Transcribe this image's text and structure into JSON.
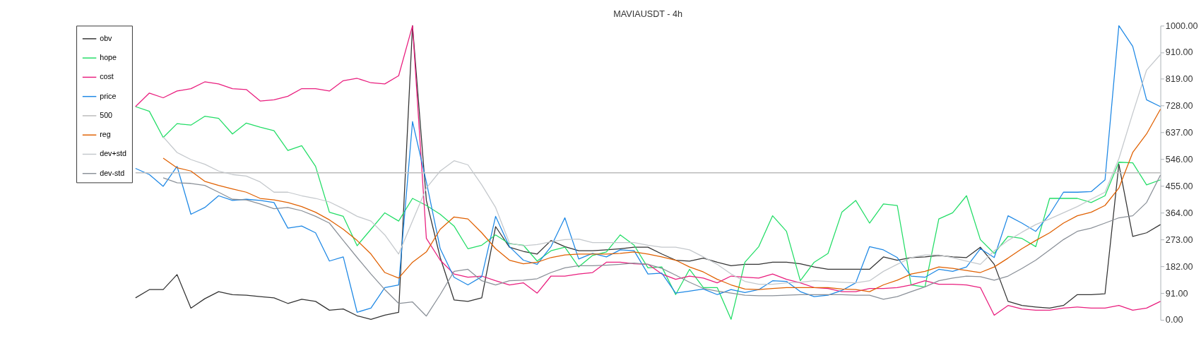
{
  "chart_data": {
    "type": "line",
    "title": "MAVIAUSDT - 4h",
    "categories": [
      null,
      null,
      null,
      null,
      null,
      null,
      null,
      null,
      null,
      null,
      null,
      null,
      null,
      null,
      null,
      null,
      null,
      null,
      null,
      null,
      null,
      null,
      null,
      null,
      null,
      null,
      null,
      null,
      null,
      null,
      null,
      null,
      null,
      null,
      null,
      null,
      null,
      null,
      null,
      null,
      null,
      null,
      null,
      null,
      null,
      null,
      null,
      null,
      null,
      null,
      null,
      null,
      null,
      null,
      null,
      null,
      null,
      null,
      null,
      null,
      null,
      null,
      null,
      null,
      null,
      null,
      null,
      null,
      null,
      null,
      null,
      null,
      null,
      null,
      null
    ],
    "series": [
      {
        "name": "obv",
        "color": "#333333",
        "values": [
          75,
          103,
          103,
          154,
          40,
          72,
          96,
          86,
          84,
          79,
          75,
          56,
          70,
          63,
          33,
          37,
          14,
          2,
          16,
          26,
          1000,
          406,
          212,
          68,
          63,
          75,
          317,
          247,
          233,
          224,
          270,
          249,
          235,
          235,
          238,
          242,
          247,
          247,
          224,
          203,
          200,
          210,
          196,
          184,
          189,
          189,
          196,
          196,
          191,
          180,
          172,
          172,
          172,
          172,
          214,
          203,
          212,
          214,
          219,
          214,
          212,
          247,
          189,
          63,
          49,
          44,
          40,
          49,
          86,
          86,
          89,
          529,
          284,
          296,
          324
        ]
      },
      {
        "name": "hope",
        "color": "#22dd66",
        "values": [
          725,
          709,
          620,
          667,
          662,
          692,
          685,
          632,
          669,
          655,
          643,
          576,
          592,
          522,
          366,
          352,
          252,
          308,
          364,
          336,
          413,
          389,
          359,
          319,
          242,
          254,
          289,
          259,
          254,
          200,
          235,
          247,
          180,
          219,
          231,
          289,
          254,
          177,
          180,
          86,
          172,
          110,
          110,
          2,
          196,
          249,
          354,
          301,
          133,
          196,
          226,
          366,
          406,
          329,
          394,
          389,
          119,
          112,
          343,
          364,
          422,
          273,
          226,
          284,
          277,
          249,
          413,
          413,
          413,
          399,
          422,
          536,
          534,
          459,
          476
        ]
      },
      {
        "name": "cost",
        "color": "#e91e7e",
        "values": [
          725,
          771,
          755,
          778,
          786,
          809,
          802,
          786,
          783,
          744,
          748,
          760,
          786,
          786,
          778,
          813,
          821,
          806,
          802,
          830,
          1000,
          277,
          203,
          156,
          145,
          149,
          133,
          119,
          126,
          91,
          149,
          149,
          156,
          161,
          196,
          196,
          191,
          189,
          156,
          138,
          149,
          142,
          126,
          149,
          145,
          142,
          156,
          138,
          126,
          110,
          107,
          96,
          96,
          107,
          107,
          110,
          119,
          133,
          121,
          121,
          119,
          110,
          16,
          49,
          37,
          33,
          33,
          40,
          44,
          40,
          40,
          49,
          33,
          40,
          63
        ]
      },
      {
        "name": "price",
        "color": "#1e88e5",
        "values": [
          515,
          494,
          454,
          522,
          359,
          382,
          422,
          406,
          410,
          406,
          399,
          312,
          319,
          296,
          200,
          214,
          26,
          40,
          110,
          119,
          674,
          469,
          242,
          145,
          119,
          147,
          352,
          249,
          203,
          189,
          249,
          347,
          207,
          226,
          214,
          238,
          235,
          156,
          159,
          91,
          98,
          105,
          86,
          103,
          93,
          103,
          133,
          131,
          96,
          79,
          84,
          100,
          126,
          249,
          238,
          212,
          149,
          145,
          172,
          165,
          180,
          242,
          212,
          354,
          329,
          301,
          359,
          434,
          434,
          436,
          476,
          1000,
          930,
          748,
          725
        ]
      },
      {
        "name": "500",
        "color": "#bbbbbb",
        "values": [
          500,
          500,
          500,
          500,
          500,
          500,
          500,
          500,
          500,
          500,
          500,
          500,
          500,
          500,
          500,
          500,
          500,
          500,
          500,
          500,
          500,
          500,
          500,
          500,
          500,
          500,
          500,
          500,
          500,
          500,
          500,
          500,
          500,
          500,
          500,
          500,
          500,
          500,
          500,
          500,
          500,
          500,
          500,
          500,
          500,
          500,
          500,
          500,
          500,
          500,
          500,
          500,
          500,
          500,
          500,
          500,
          500,
          500,
          500,
          500,
          500,
          500,
          500,
          500,
          500,
          500,
          500,
          500,
          500,
          500,
          500,
          500,
          500,
          500,
          500
        ]
      },
      {
        "name": "reg",
        "color": "#e06000",
        "values": [
          null,
          null,
          550,
          517,
          506,
          471,
          457,
          445,
          434,
          413,
          408,
          399,
          385,
          366,
          340,
          308,
          270,
          224,
          161,
          142,
          196,
          231,
          308,
          350,
          343,
          296,
          242,
          203,
          191,
          196,
          212,
          221,
          224,
          224,
          224,
          226,
          231,
          224,
          214,
          203,
          180,
          163,
          138,
          119,
          105,
          103,
          107,
          110,
          110,
          110,
          110,
          105,
          103,
          96,
          119,
          135,
          156,
          165,
          180,
          175,
          168,
          161,
          180,
          210,
          242,
          270,
          296,
          329,
          354,
          366,
          389,
          448,
          569,
          632,
          716
        ]
      },
      {
        "name": "dev+std",
        "color": "#c4c8cc",
        "values": [
          null,
          null,
          622,
          569,
          545,
          529,
          506,
          494,
          489,
          469,
          434,
          434,
          422,
          413,
          401,
          378,
          352,
          336,
          289,
          224,
          336,
          448,
          506,
          541,
          527,
          459,
          382,
          261,
          252,
          256,
          266,
          273,
          275,
          263,
          263,
          263,
          263,
          254,
          247,
          247,
          238,
          214,
          189,
          156,
          131,
          121,
          121,
          126,
          128,
          133,
          131,
          128,
          126,
          133,
          165,
          189,
          212,
          221,
          221,
          212,
          200,
          189,
          235,
          270,
          298,
          324,
          343,
          364,
          385,
          410,
          434,
          548,
          702,
          849,
          902
        ]
      },
      {
        "name": "dev-std",
        "color": "#8a9098",
        "values": [
          null,
          null,
          483,
          466,
          464,
          457,
          434,
          410,
          408,
          394,
          378,
          382,
          371,
          352,
          329,
          270,
          212,
          156,
          103,
          56,
          61,
          13,
          86,
          165,
          172,
          133,
          119,
          133,
          135,
          140,
          161,
          177,
          184,
          184,
          186,
          189,
          193,
          189,
          175,
          152,
          128,
          107,
          98,
          91,
          84,
          82,
          82,
          84,
          86,
          86,
          86,
          86,
          84,
          84,
          70,
          79,
          96,
          112,
          133,
          142,
          149,
          147,
          135,
          149,
          175,
          203,
          238,
          273,
          301,
          312,
          329,
          347,
          354,
          399,
          492
        ]
      }
    ],
    "ylim": [
      0,
      1000
    ],
    "yticks": [
      {
        "value": 0,
        "label": "0.00"
      },
      {
        "value": 91,
        "label": "91.00"
      },
      {
        "value": 182,
        "label": "182.00"
      },
      {
        "value": 273,
        "label": "273.00"
      },
      {
        "value": 364,
        "label": "364.00"
      },
      {
        "value": 455,
        "label": "455.00"
      },
      {
        "value": 546,
        "label": "546.00"
      },
      {
        "value": 637,
        "label": "637.00"
      },
      {
        "value": 728,
        "label": "728.00"
      },
      {
        "value": 819,
        "label": "819.00"
      },
      {
        "value": 910,
        "label": "910.00"
      },
      {
        "value": 1000,
        "label": "1000.00"
      }
    ],
    "legend": "top left",
    "grid": false,
    "line_style": "solid",
    "marker": "none",
    "tick_labels": "y"
  }
}
